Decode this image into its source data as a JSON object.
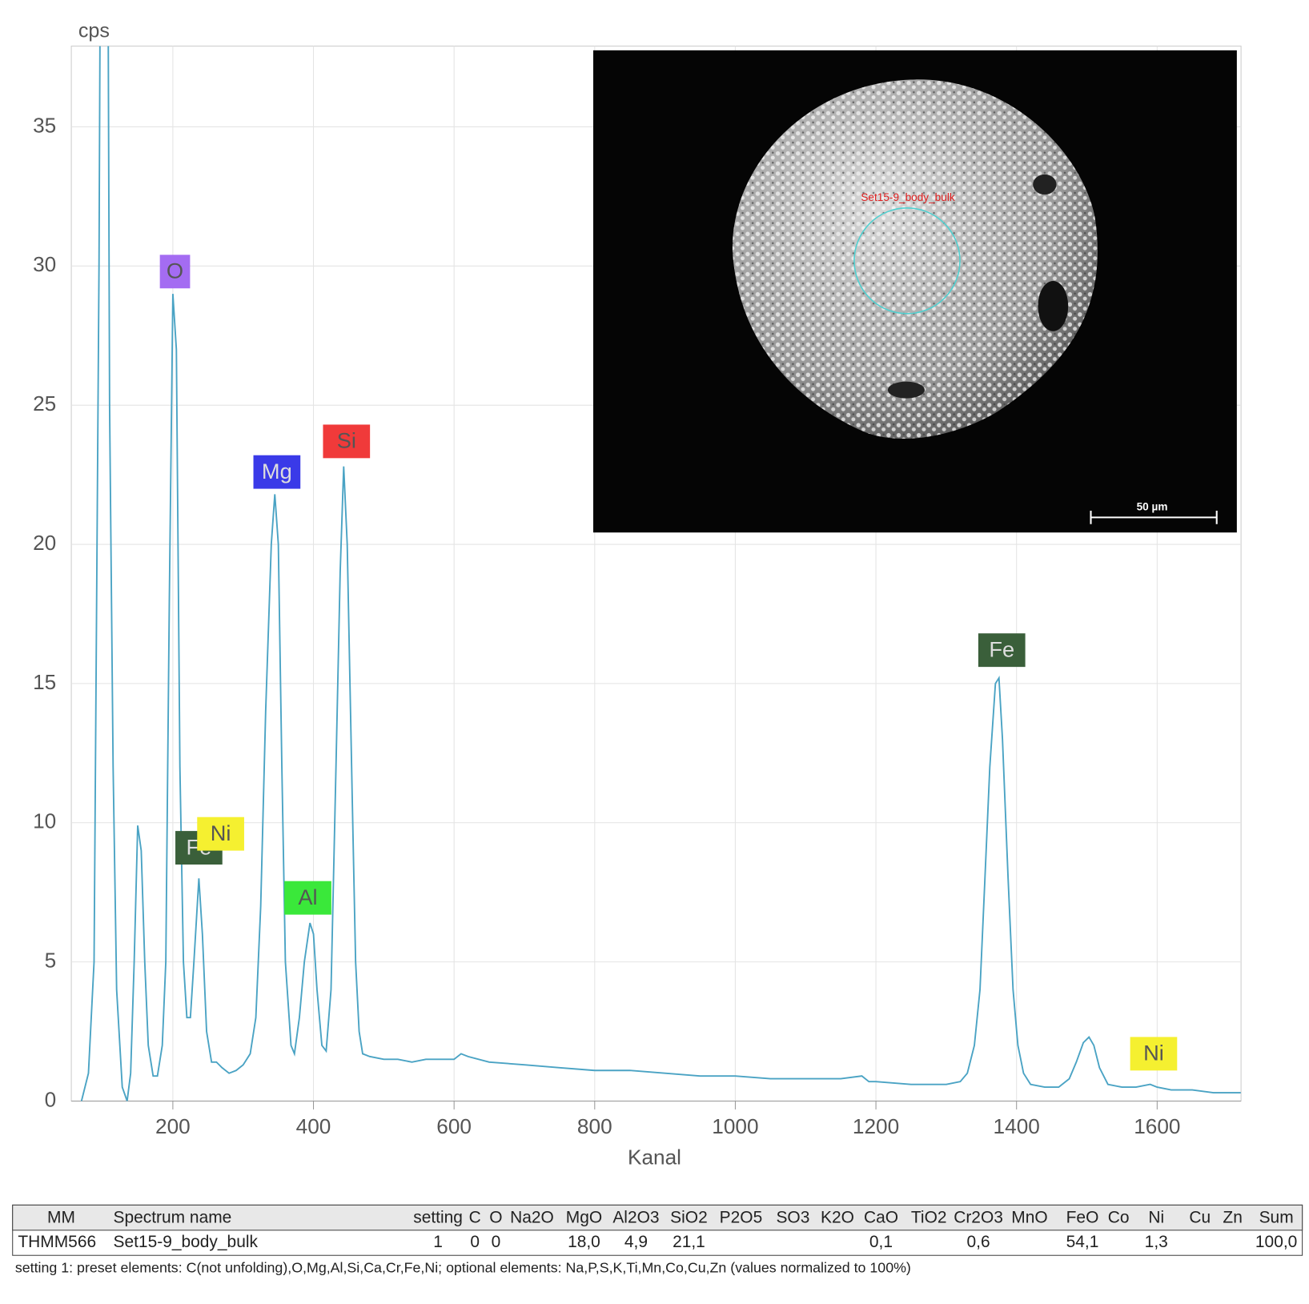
{
  "chart_data": {
    "type": "line",
    "xlabel": "Kanal",
    "ylabel": "cps",
    "color": "#4aa3c4",
    "xlim": [
      55.6,
      1719.3
    ],
    "xticks": [
      200,
      400,
      600,
      800,
      1000,
      1200,
      1400,
      1600
    ],
    "ylim": [
      0,
      37.9
    ],
    "yticks": [
      0,
      5,
      10,
      15,
      20,
      25,
      30,
      35
    ],
    "grid": true,
    "x": [
      70,
      80,
      88,
      95,
      100,
      105,
      110,
      115,
      120,
      128,
      135,
      140,
      145,
      150,
      155,
      160,
      165,
      172,
      178,
      185,
      190,
      195,
      200,
      205,
      210,
      215,
      220,
      225,
      230,
      237,
      242,
      248,
      255,
      262,
      270,
      280,
      290,
      300,
      310,
      318,
      325,
      332,
      340,
      345,
      350,
      355,
      360,
      368,
      373,
      380,
      387,
      395,
      400,
      405,
      412,
      418,
      425,
      432,
      438,
      443,
      448,
      455,
      460,
      465,
      470,
      480,
      500,
      520,
      540,
      560,
      580,
      600,
      610,
      620,
      650,
      700,
      750,
      800,
      850,
      900,
      950,
      1000,
      1050,
      1100,
      1150,
      1180,
      1190,
      1200,
      1250,
      1300,
      1320,
      1330,
      1340,
      1348,
      1355,
      1362,
      1370,
      1375,
      1380,
      1388,
      1395,
      1402,
      1410,
      1420,
      1440,
      1460,
      1475,
      1485,
      1495,
      1503,
      1510,
      1518,
      1530,
      1550,
      1570,
      1590,
      1600,
      1620,
      1650,
      1680,
      1700,
      1719
    ],
    "values": [
      0,
      1,
      5,
      30,
      60,
      60,
      25,
      12,
      4,
      0.5,
      0,
      1,
      5,
      9.9,
      9,
      5,
      2,
      0.9,
      0.9,
      2,
      5,
      18,
      29,
      27,
      12,
      5,
      3,
      3,
      5,
      8,
      6,
      2.5,
      1.4,
      1.4,
      1.2,
      1.0,
      1.1,
      1.3,
      1.7,
      3,
      7,
      14,
      20,
      21.8,
      20,
      12,
      5,
      2,
      1.7,
      3,
      5,
      6.4,
      6,
      4,
      2,
      1.8,
      4,
      12,
      19,
      22.8,
      20,
      11,
      5,
      2.5,
      1.7,
      1.6,
      1.5,
      1.5,
      1.4,
      1.5,
      1.5,
      1.5,
      1.7,
      1.6,
      1.4,
      1.3,
      1.2,
      1.1,
      1.1,
      1.0,
      0.9,
      0.9,
      0.8,
      0.8,
      0.8,
      0.9,
      0.7,
      0.7,
      0.6,
      0.6,
      0.7,
      1.0,
      2,
      4,
      8,
      12,
      15,
      15.2,
      13,
      8,
      4,
      2,
      1,
      0.6,
      0.5,
      0.5,
      0.8,
      1.4,
      2.1,
      2.3,
      2,
      1.2,
      0.6,
      0.5,
      0.5,
      0.6,
      0.5,
      0.4,
      0.4,
      0.3,
      0.3,
      0.3
    ],
    "annotations": [
      {
        "text": "O",
        "x": 203,
        "y": 29.8,
        "color": "#a46cf2"
      },
      {
        "text": "Mg",
        "x": 348,
        "y": 22.6,
        "color": "#3a3ae8"
      },
      {
        "text": "Si",
        "x": 447,
        "y": 23.7,
        "color": "#f03a3a"
      },
      {
        "text": "Fe",
        "x": 237,
        "y": 9.1,
        "color": "#3a5f3a"
      },
      {
        "text": "Ni",
        "x": 268,
        "y": 9.6,
        "color": "#f5f030"
      },
      {
        "text": "Al",
        "x": 392,
        "y": 7.3,
        "color": "#3ae83a"
      },
      {
        "text": "Fe",
        "x": 1379,
        "y": 16.2,
        "color": "#3a5f3a"
      },
      {
        "text": "Ni",
        "x": 1595,
        "y": 1.7,
        "color": "#f5f030"
      }
    ]
  },
  "inset": {
    "label": "Set15-9_body_bulk",
    "scale_bar": "50 µm"
  },
  "table": {
    "header": [
      "MM",
      "Spectrum name",
      "setting",
      "C",
      "O",
      "Na2O",
      "MgO",
      "Al2O3",
      "SiO2",
      "P2O5",
      "SO3",
      "K2O",
      "CaO",
      "TiO2",
      "Cr2O3",
      "MnO",
      "FeO",
      "Co",
      "Ni",
      "Cu",
      "Zn",
      "Sum"
    ],
    "rows": [
      [
        "THMM566",
        "Set15-9_body_bulk",
        "1",
        "0",
        "0",
        null,
        "18,0",
        "4,9",
        "21,1",
        null,
        null,
        null,
        "0,1",
        null,
        "0,6",
        null,
        "54,1",
        null,
        "1,3",
        null,
        null,
        "100,0"
      ]
    ]
  },
  "footnote": "setting 1: preset elements: C(not unfolding),O,Mg,Al,Si,Ca,Cr,Fe,Ni; optional elements: Na,P,S,K,Ti,Mn,Co,Cu,Zn (values normalized to 100%)"
}
